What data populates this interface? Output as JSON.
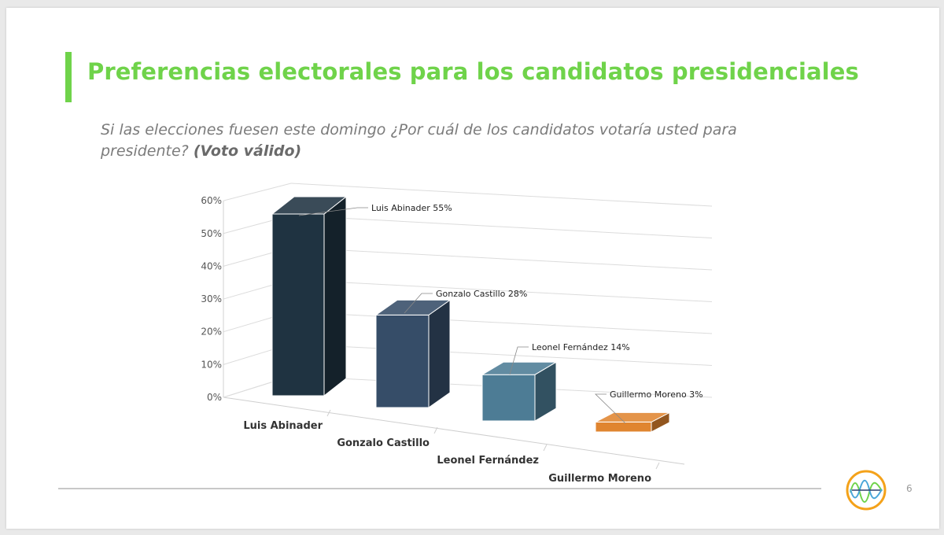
{
  "slide": {
    "title": "Preferencias electorales para los candidatos presidenciales",
    "question": "Si las elecciones fuesen este domingo ¿Por cuál de los candidatos votaría usted para presidente?",
    "question_emphasis": "(Voto válido)",
    "page_number": "6",
    "logo_icon": "waveform-circle-icon"
  },
  "colors": {
    "title": "#6fd34a",
    "accent_bar": "#6fd34a",
    "logo_ring": "#f4a21a"
  },
  "chart_data": {
    "type": "bar",
    "categories": [
      "Luis Abinader",
      "Gonzalo Castillo",
      "Leonel Fernández",
      "Guillermo Moreno"
    ],
    "values": [
      55,
      28,
      14,
      3
    ],
    "data_labels": [
      "Luis Abinader 55%",
      "Gonzalo Castillo 28%",
      "Leonel Fernández 14%",
      "Guillermo Moreno 3%"
    ],
    "y_ticks": [
      "0%",
      "10%",
      "20%",
      "30%",
      "40%",
      "50%",
      "60%"
    ],
    "ylim": [
      0,
      60
    ],
    "grid": true,
    "legend": "none",
    "bar_colors": [
      "#1f3341",
      "#364d68",
      "#4d7c95",
      "#e08530"
    ]
  }
}
